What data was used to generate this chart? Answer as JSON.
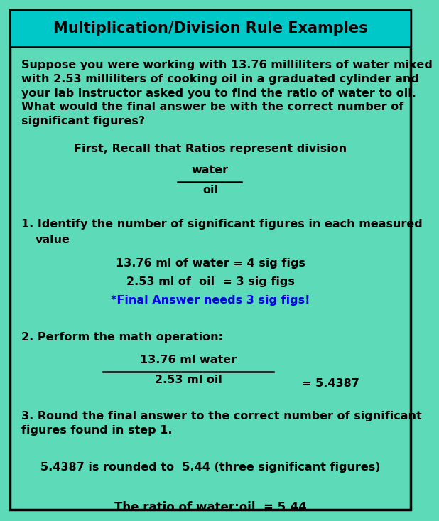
{
  "title": "Multiplication/Division Rule Examples",
  "title_bg": "#00C8C8",
  "body_bg": "#5DDBB8",
  "border_color": "#000000",
  "title_color": "#000000",
  "text_color": "#000000",
  "blue_color": "#0000EE",
  "title_fontsize": 15,
  "fig_width": 5.72,
  "fig_height": 7.11,
  "paragraph": "Suppose you were working with 13.76 milliliters of water mixed\nwith 2.53 milliliters of cooking oil in a graduated cylinder and\nyour lab instructor asked you to find the ratio of water to oil.\nWhat would the final answer be with the correct number of\nsignificant figures?",
  "recall_line": "First, Recall that Ratios represent division",
  "fraction_numerator": "water",
  "fraction_denominator": "oil",
  "step1_line1": "1. Identify the number of significant figures in each measured",
  "step1_line2": "   value",
  "step1_val1": "13.76 ml of water = 4 sig figs",
  "step1_val2": "2.53 ml of  oil  = 3 sig figs",
  "step1_note": "*Final Answer needs 3 sig figs!",
  "step2_label": "2. Perform the math operation:",
  "step2_num": "13.76 ml water",
  "step2_den": "2.53 ml oil",
  "step2_result": "= 5.4387",
  "step3_label": "3. Round the final answer to the correct number of significant\nfigures found in step 1.",
  "step3_rounded": "5.4387 is rounded to  5.44 (three significant figures)",
  "step3_final": "The ratio of water:oil  = 5.44"
}
